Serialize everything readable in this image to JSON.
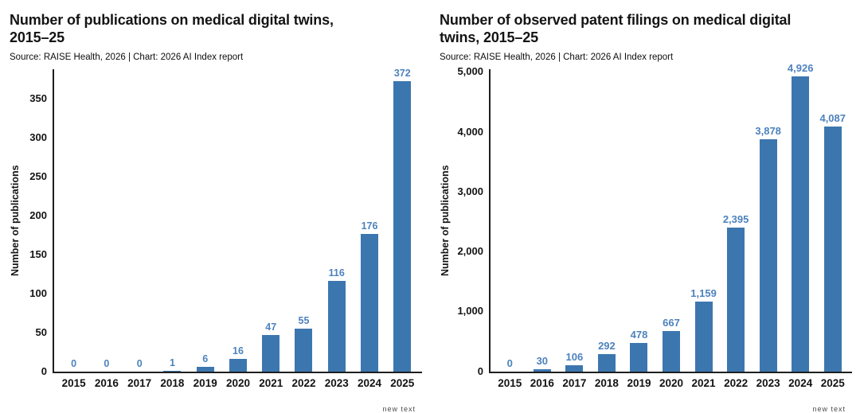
{
  "page": {
    "background": "#ffffff",
    "axis_color": "#1f1f1f",
    "text_color": "#131313"
  },
  "chart_data": [
    {
      "type": "bar",
      "title": "Number of publications on medical digital twins, 2015–25",
      "source": "Source: RAISE Health, 2026 | Chart: 2026 AI Index report",
      "ylabel": "Number of publications",
      "xlabel": "",
      "categories": [
        "2015",
        "2016",
        "2017",
        "2018",
        "2019",
        "2020",
        "2021",
        "2022",
        "2023",
        "2024",
        "2025"
      ],
      "values": [
        0,
        0,
        0,
        1,
        6,
        16,
        47,
        55,
        116,
        176,
        372
      ],
      "value_labels": [
        "0",
        "0",
        "0",
        "1",
        "6",
        "16",
        "47",
        "55",
        "116",
        "176",
        "372"
      ],
      "yticks": [
        0,
        50,
        100,
        150,
        200,
        250,
        300,
        350
      ],
      "ytick_labels": [
        "0",
        "50",
        "100",
        "150",
        "200",
        "250",
        "300",
        "350"
      ],
      "ylim": [
        0,
        388
      ],
      "grid": false,
      "legend": "none",
      "bar_color": "#3c76af",
      "value_label_color": "#4d82bd",
      "footnote": "new text"
    },
    {
      "type": "bar",
      "title": "Number of observed patent filings on medical digital twins, 2015–25",
      "source": "Source: RAISE Health, 2026 | Chart: 2026 AI Index report",
      "ylabel": "Number of publications",
      "xlabel": "",
      "categories": [
        "2015",
        "2016",
        "2017",
        "2018",
        "2019",
        "2020",
        "2021",
        "2022",
        "2023",
        "2024",
        "2025"
      ],
      "values": [
        0,
        30,
        106,
        292,
        478,
        667,
        1159,
        2395,
        3878,
        4926,
        4087
      ],
      "value_labels": [
        "0",
        "30",
        "106",
        "292",
        "478",
        "667",
        "1,159",
        "2,395",
        "3,878",
        "4,926",
        "4,087"
      ],
      "yticks": [
        0,
        1000,
        2000,
        3000,
        4000,
        5000
      ],
      "ytick_labels": [
        "0",
        "1,000",
        "2,000",
        "3,000",
        "4,000",
        "5,000"
      ],
      "ylim": [
        0,
        5050
      ],
      "grid": false,
      "legend": "none",
      "bar_color": "#3c76af",
      "value_label_color": "#4d82bd",
      "footnote": "new text"
    }
  ]
}
